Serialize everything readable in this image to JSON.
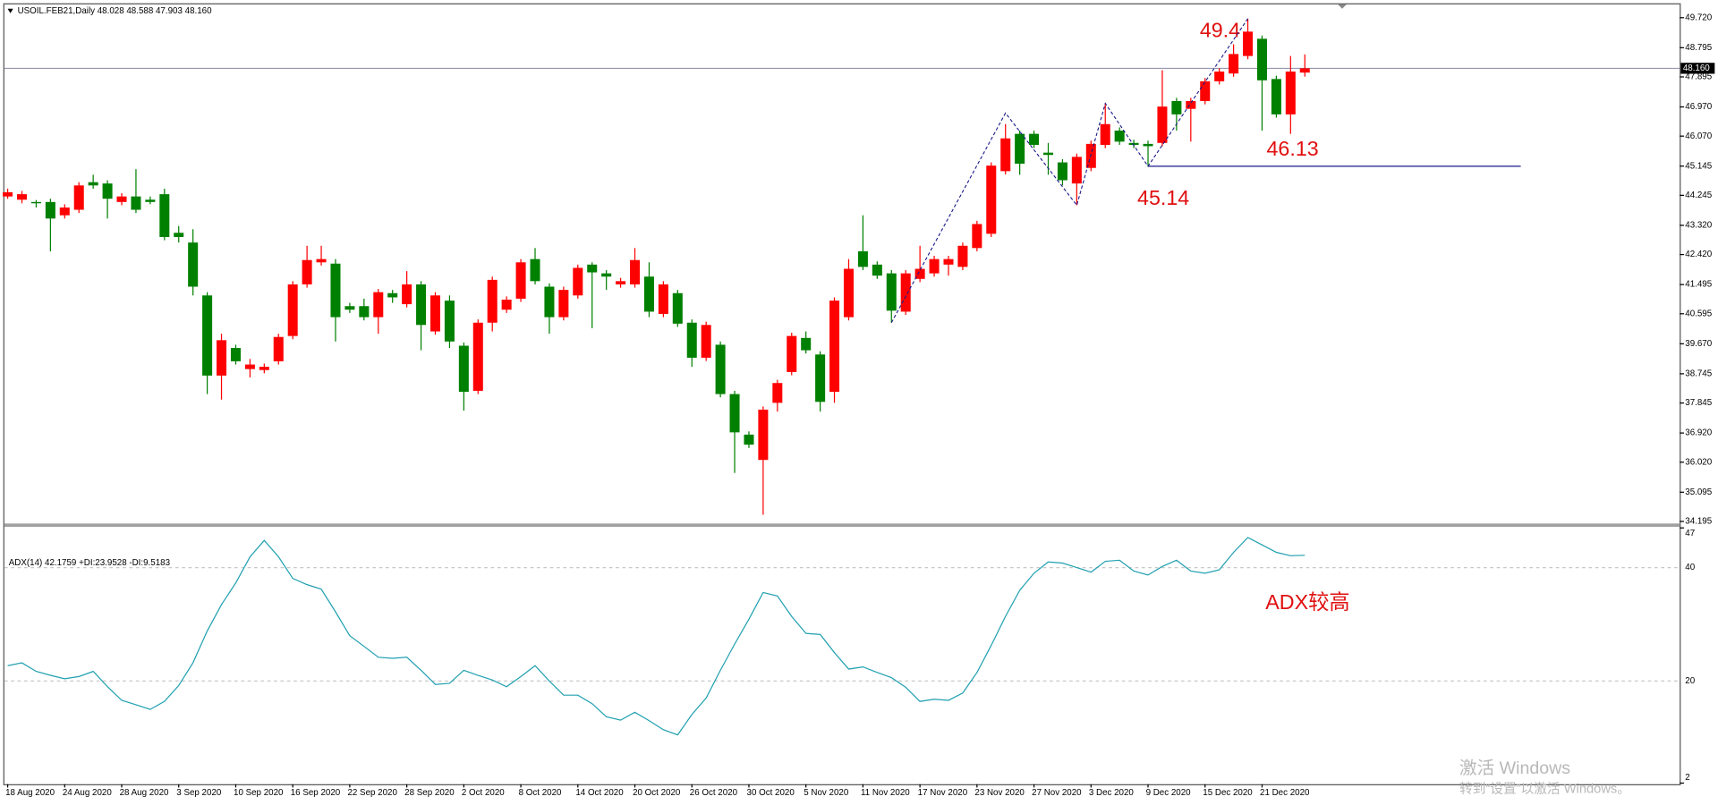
{
  "chart_data": [
    {
      "type": "candlestick",
      "title": "USOIL.FEB21,Daily 48.028 48.588 47.903 48.160",
      "categories": [
        "18 Aug 2020",
        null,
        null,
        null,
        "24 Aug 2020",
        null,
        null,
        null,
        "28 Aug 2020",
        null,
        null,
        null,
        "3 Sep 2020",
        null,
        null,
        null,
        "10 Sep 2020",
        null,
        null,
        null,
        "16 Sep 2020",
        null,
        null,
        null,
        "22 Sep 2020",
        null,
        null,
        null,
        "28 Sep 2020",
        null,
        null,
        null,
        "2 Oct 2020",
        null,
        null,
        null,
        "8 Oct 2020",
        null,
        null,
        null,
        "14 Oct 2020",
        null,
        null,
        null,
        "20 Oct 2020",
        null,
        null,
        null,
        "26 Oct 2020",
        null,
        null,
        null,
        "30 Oct 2020",
        null,
        null,
        null,
        "5 Nov 2020",
        null,
        null,
        null,
        "11 Nov 2020",
        null,
        null,
        null,
        "17 Nov 2020",
        null,
        null,
        null,
        "23 Nov 2020",
        null,
        null,
        null,
        "27 Nov 2020",
        null,
        null,
        null,
        "3 Dec 2020",
        null,
        null,
        null,
        "9 Dec 2020",
        null,
        null,
        null,
        "15 Dec 2020",
        null,
        null,
        null,
        "21 Dec 2020",
        null,
        null,
        null
      ],
      "open": [
        44.21,
        44.11,
        44.04,
        44.04,
        43.63,
        43.8,
        44.65,
        44.61,
        44.04,
        44.21,
        44.11,
        44.28,
        43.09,
        42.79,
        41.16,
        38.69,
        39.54,
        38.89,
        38.86,
        39.13,
        39.91,
        41.5,
        42.18,
        42.14,
        40.83,
        40.83,
        40.49,
        41.23,
        40.89,
        41.5,
        40.05,
        41.0,
        39.61,
        38.22,
        40.32,
        40.72,
        41.06,
        42.28,
        41.43,
        40.49,
        41.16,
        42.11,
        41.84,
        41.5,
        41.5,
        41.74,
        40.59,
        41.23,
        40.32,
        39.24,
        39.64,
        38.12,
        36.87,
        36.09,
        37.85,
        38.8,
        39.85,
        39.34,
        38.19,
        40.49,
        42.52,
        42.11,
        41.84,
        40.66,
        41.67,
        41.84,
        42.11,
        42.04,
        42.62,
        43.06,
        44.99,
        46.14,
        46.14,
        45.56,
        45.26,
        44.61,
        45.09,
        45.8,
        46.24,
        45.86,
        45.83,
        45.86,
        47.15,
        46.91,
        47.15,
        47.76,
        48.0,
        48.54,
        49.07,
        47.83,
        46.74,
        48.028
      ],
      "high": [
        44.45,
        44.38,
        44.1,
        44.14,
        43.97,
        44.65,
        44.88,
        44.71,
        44.31,
        45.05,
        44.21,
        44.45,
        43.3,
        43.2,
        41.26,
        39.98,
        39.64,
        39.2,
        39.06,
        39.98,
        41.6,
        42.69,
        42.69,
        42.28,
        40.93,
        41.06,
        41.36,
        41.33,
        41.91,
        41.6,
        41.26,
        41.16,
        39.71,
        40.42,
        41.74,
        41.13,
        42.28,
        42.62,
        41.53,
        41.43,
        42.11,
        42.18,
        41.94,
        41.7,
        42.62,
        42.18,
        41.6,
        41.33,
        40.42,
        40.35,
        39.74,
        38.22,
        36.97,
        37.74,
        38.56,
        40.01,
        40.05,
        39.44,
        41.1,
        42.28,
        43.63,
        42.21,
        41.94,
        41.94,
        42.69,
        42.38,
        42.38,
        42.79,
        43.46,
        45.26,
        46.44,
        46.24,
        46.24,
        45.86,
        45.36,
        45.53,
        45.93,
        47.08,
        46.34,
        45.96,
        45.93,
        48.1,
        47.25,
        47.25,
        47.86,
        48.16,
        48.9,
        49.69,
        49.17,
        47.93,
        48.54,
        48.588
      ],
      "low": [
        44.14,
        44.0,
        43.87,
        42.52,
        43.53,
        43.7,
        44.45,
        43.53,
        43.94,
        43.7,
        43.97,
        42.86,
        42.79,
        41.16,
        38.12,
        37.95,
        39.03,
        38.63,
        38.76,
        39.03,
        39.81,
        41.4,
        42.08,
        39.74,
        40.62,
        40.39,
        39.98,
        40.93,
        40.79,
        39.47,
        39.95,
        39.54,
        37.61,
        38.12,
        40.05,
        40.62,
        40.96,
        41.5,
        39.98,
        40.39,
        41.06,
        40.15,
        41.33,
        41.4,
        41.4,
        40.49,
        40.49,
        40.19,
        38.96,
        39.14,
        38.02,
        35.69,
        36.46,
        34.4,
        37.58,
        38.7,
        39.37,
        37.58,
        37.85,
        40.39,
        41.94,
        41.67,
        40.32,
        40.56,
        41.57,
        41.74,
        41.77,
        41.94,
        42.52,
        42.96,
        44.89,
        44.88,
        45.7,
        44.88,
        44.55,
        43.94,
        44.99,
        45.7,
        45.8,
        45.7,
        45.14,
        45.76,
        46.24,
        45.9,
        47.05,
        47.66,
        47.9,
        48.44,
        46.24,
        46.64,
        46.14,
        47.903
      ],
      "close": [
        44.34,
        44.28,
        44.0,
        43.53,
        43.87,
        44.55,
        44.55,
        44.14,
        44.21,
        43.8,
        44.04,
        42.96,
        42.96,
        41.43,
        38.69,
        39.78,
        39.13,
        39.03,
        38.96,
        39.88,
        41.5,
        42.25,
        42.28,
        40.49,
        40.72,
        40.49,
        41.26,
        41.1,
        41.5,
        40.25,
        41.16,
        39.74,
        38.19,
        40.32,
        41.64,
        41.03,
        42.18,
        41.6,
        40.49,
        41.33,
        42.01,
        41.87,
        41.74,
        41.6,
        42.25,
        40.66,
        41.5,
        40.29,
        39.24,
        40.25,
        38.12,
        36.94,
        36.56,
        37.64,
        38.46,
        39.91,
        39.47,
        37.88,
        41.0,
        41.98,
        42.04,
        41.77,
        40.69,
        41.84,
        41.98,
        42.28,
        42.28,
        42.69,
        43.36,
        45.16,
        46.0,
        45.22,
        45.8,
        45.49,
        44.71,
        45.43,
        45.83,
        46.44,
        45.9,
        45.8,
        45.76,
        46.98,
        46.74,
        47.15,
        47.76,
        48.06,
        48.6,
        49.29,
        47.79,
        46.74,
        48.06,
        48.16
      ],
      "up_color": "#ff0000",
      "down_color": "#008000",
      "ylim": [
        34.13,
        50.13
      ],
      "yticks": [
        {
          "value": 49.72,
          "label": "49.720"
        },
        {
          "value": 48.795,
          "label": "48.795"
        },
        {
          "value": 47.895,
          "label": "47.895"
        },
        {
          "value": 46.97,
          "label": "46.970"
        },
        {
          "value": 46.07,
          "label": "46.070"
        },
        {
          "value": 45.145,
          "label": "45.145"
        },
        {
          "value": 44.245,
          "label": "44.245"
        },
        {
          "value": 43.32,
          "label": "43.320"
        },
        {
          "value": 42.42,
          "label": "42.420"
        },
        {
          "value": 41.495,
          "label": "41.495"
        },
        {
          "value": 40.595,
          "label": "40.595"
        },
        {
          "value": 39.67,
          "label": "39.670"
        },
        {
          "value": 38.745,
          "label": "38.745"
        },
        {
          "value": 37.845,
          "label": "37.845"
        },
        {
          "value": 36.92,
          "label": "36.920"
        },
        {
          "value": 36.02,
          "label": "36.020"
        },
        {
          "value": 35.095,
          "label": "35.095"
        },
        {
          "value": 34.195,
          "label": "34.195"
        }
      ],
      "current_price": {
        "value": 48.16,
        "label": "48.160"
      },
      "levels": [
        45.14
      ],
      "zigzag": {
        "x": [
          62,
          70,
          75,
          77,
          80,
          87
        ],
        "values": [
          40.32,
          46.78,
          43.94,
          47.08,
          45.14,
          49.69
        ],
        "color": "#1a1a8c"
      },
      "annotations": [
        "49.4",
        "46.13"
      ],
      "note": "ADX较高",
      "watermark": [
        "激活 Windows",
        "转到“设置”以激活 Windows。"
      ]
    },
    {
      "type": "line",
      "title": "ADX(14) 42.1759 +DI:23.9528 -DI:9.5183",
      "color": "#20a0b0",
      "values": [
        22.7,
        23.2,
        21.7,
        21.0,
        20.4,
        20.8,
        21.7,
        19.0,
        16.6,
        15.8,
        15.0,
        16.4,
        19.2,
        23.2,
        28.8,
        33.5,
        37.3,
        41.9,
        44.8,
        41.9,
        38.1,
        37.0,
        36.2,
        32.2,
        28.0,
        26.1,
        24.2,
        24.0,
        24.2,
        21.9,
        19.4,
        19.6,
        21.9,
        21.0,
        20.2,
        19.0,
        20.8,
        22.7,
        20.0,
        17.5,
        17.5,
        16.0,
        13.7,
        13.1,
        14.5,
        13.0,
        11.4,
        10.5,
        14.1,
        17.0,
        21.9,
        26.5,
        30.9,
        35.6,
        35.0,
        31.4,
        28.4,
        28.2,
        25.0,
        22.1,
        22.5,
        21.5,
        20.6,
        18.9,
        16.4,
        16.8,
        16.6,
        17.9,
        21.5,
        26.3,
        31.4,
        36.0,
        39.0,
        41.0,
        40.8,
        40.0,
        39.2,
        41.1,
        41.3,
        39.4,
        38.7,
        40.2,
        41.3,
        39.4,
        39.0,
        39.6,
        42.7,
        45.3,
        44.0,
        42.7,
        42.1,
        42.18
      ],
      "ylim": [
        2,
        47
      ],
      "yticks": [
        2,
        20,
        40,
        47
      ],
      "grid": true
    }
  ]
}
